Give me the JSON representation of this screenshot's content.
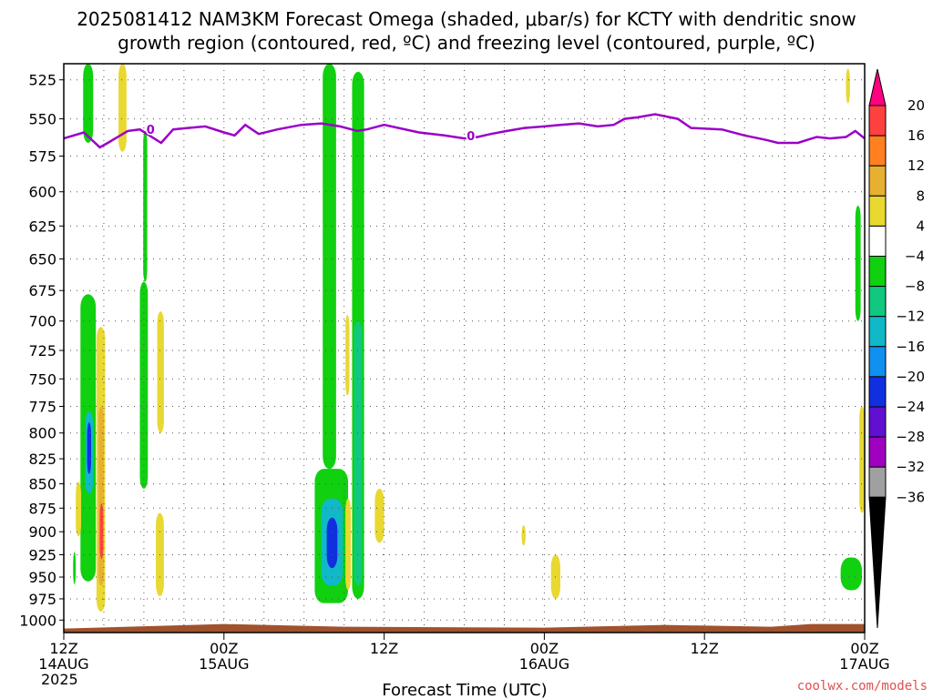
{
  "title_line1": "2025081412 NAM3KM Forecast Omega (shaded, μbar/s) for KCTY with dendritic snow",
  "title_line2": "growth region (contoured, red, ºC) and freezing level (contoured, purple, ºC)",
  "xlabel": "Forecast Time (UTC)",
  "credit": "coolwx.com/models",
  "freezing_label": "0",
  "colors": {
    "freezing_line": "#9b00c8",
    "terrain": "#a0522d",
    "grid": "#555555"
  },
  "chart_data": {
    "type": "heatmap",
    "x_ticks": [
      {
        "hour": 0,
        "l1": "12Z",
        "l2": "14AUG",
        "l3": "2025"
      },
      {
        "hour": 12,
        "l1": "00Z",
        "l2": "15AUG",
        "l3": ""
      },
      {
        "hour": 24,
        "l1": "12Z",
        "l2": "",
        "l3": ""
      },
      {
        "hour": 36,
        "l1": "00Z",
        "l2": "16AUG",
        "l3": ""
      },
      {
        "hour": 48,
        "l1": "12Z",
        "l2": "",
        "l3": ""
      },
      {
        "hour": 60,
        "l1": "00Z",
        "l2": "17AUG",
        "l3": ""
      }
    ],
    "x_range_hours": [
      0,
      60
    ],
    "y_ticks": [
      525,
      550,
      575,
      600,
      625,
      650,
      675,
      700,
      725,
      750,
      775,
      800,
      825,
      850,
      875,
      900,
      925,
      950,
      975,
      1000
    ],
    "y_range_hpa": [
      515,
      1015
    ],
    "y_scale": "log-pressure",
    "grid": "dotted",
    "colorbar": {
      "labels": [
        "20",
        "16",
        "12",
        "8",
        "4",
        "−4",
        "−8",
        "−12",
        "−16",
        "−20",
        "−24",
        "−28",
        "−32",
        "−36"
      ],
      "colors": [
        "#ff0080",
        "#ff4040",
        "#ff8020",
        "#e8b030",
        "#e8d830",
        "#ffffff",
        "#10d010",
        "#10c880",
        "#10b8c8",
        "#1090f0",
        "#1030e0",
        "#6010d0",
        "#a000c0",
        "#a0a0a0",
        "#000000"
      ]
    },
    "freezing_level": {
      "hours": [
        0,
        1.5,
        2.7,
        3.3,
        4.8,
        5.7,
        7.3,
        8.2,
        9.3,
        10.6,
        12,
        12.8,
        13.6,
        14.6,
        16,
        17.8,
        19.3,
        20.7,
        22,
        22.7,
        24,
        26.6,
        28.5,
        30,
        31,
        32,
        33.2,
        34.5,
        36,
        37.2,
        38.6,
        40,
        41.2,
        42,
        43,
        44.3,
        46,
        47,
        49.3,
        51,
        52.6,
        53.5,
        55,
        56.4,
        57.4,
        58.6,
        59.3,
        60
      ],
      "hpa": [
        563,
        559,
        569,
        566,
        558,
        557,
        566,
        557,
        556,
        555,
        559,
        561,
        554,
        560,
        557,
        554,
        553,
        555,
        558,
        557,
        554,
        559,
        561,
        563,
        562,
        560,
        558,
        556,
        555,
        554,
        553,
        555,
        554,
        550,
        549,
        547,
        550,
        556,
        557,
        561,
        564,
        566,
        566,
        562,
        563,
        562,
        558,
        563
      ]
    },
    "terrain_hpa": 1008,
    "omega_cells": [
      {
        "h0": 1.45,
        "h1": 2.2,
        "p0": 515,
        "p1": 566,
        "v": -6
      },
      {
        "h0": 4.1,
        "h1": 4.7,
        "p0": 515,
        "p1": 572,
        "v": 6
      },
      {
        "h0": 5.95,
        "h1": 6.25,
        "p0": 558,
        "p1": 668,
        "v": -6
      },
      {
        "h0": 5.7,
        "h1": 6.3,
        "p0": 668,
        "p1": 855,
        "v": -6
      },
      {
        "h0": 1.25,
        "h1": 2.4,
        "p0": 678,
        "p1": 955,
        "v": -6
      },
      {
        "h0": 1.6,
        "h1": 2.2,
        "p0": 780,
        "p1": 860,
        "v": -14
      },
      {
        "h0": 1.75,
        "h1": 2.05,
        "p0": 790,
        "p1": 840,
        "v": -20
      },
      {
        "h0": 2.45,
        "h1": 3.1,
        "p0": 705,
        "p1": 990,
        "v": 6
      },
      {
        "h0": 2.6,
        "h1": 3.0,
        "p0": 775,
        "p1": 960,
        "v": 10
      },
      {
        "h0": 2.7,
        "h1": 2.95,
        "p0": 870,
        "p1": 930,
        "v": 18
      },
      {
        "h0": 0.9,
        "h1": 1.3,
        "p0": 848,
        "p1": 905,
        "v": 6
      },
      {
        "h0": 0.7,
        "h1": 0.9,
        "p0": 922,
        "p1": 958,
        "v": -6
      },
      {
        "h0": 7.0,
        "h1": 7.5,
        "p0": 692,
        "p1": 800,
        "v": 6
      },
      {
        "h0": 6.9,
        "h1": 7.5,
        "p0": 880,
        "p1": 972,
        "v": 6
      },
      {
        "h0": 19.4,
        "h1": 20.4,
        "p0": 515,
        "p1": 835,
        "v": -6
      },
      {
        "h0": 18.8,
        "h1": 21.3,
        "p0": 835,
        "p1": 980,
        "v": -6
      },
      {
        "h0": 19.3,
        "h1": 20.9,
        "p0": 865,
        "p1": 960,
        "v": -12
      },
      {
        "h0": 19.7,
        "h1": 20.5,
        "p0": 885,
        "p1": 940,
        "v": -20
      },
      {
        "h0": 21.6,
        "h1": 22.5,
        "p0": 520,
        "p1": 975,
        "v": -6
      },
      {
        "h0": 21.75,
        "h1": 22.35,
        "p0": 700,
        "p1": 960,
        "v": -10
      },
      {
        "h0": 21.1,
        "h1": 21.4,
        "p0": 695,
        "p1": 765,
        "v": 6
      },
      {
        "h0": 21.1,
        "h1": 21.5,
        "p0": 865,
        "p1": 965,
        "v": 6
      },
      {
        "h0": 23.3,
        "h1": 24.0,
        "p0": 855,
        "p1": 912,
        "v": 6
      },
      {
        "h0": 34.3,
        "h1": 34.6,
        "p0": 893,
        "p1": 915,
        "v": 6
      },
      {
        "h0": 36.5,
        "h1": 37.2,
        "p0": 925,
        "p1": 975,
        "v": 6
      },
      {
        "h0": 58.6,
        "h1": 58.9,
        "p0": 518,
        "p1": 540,
        "v": 6
      },
      {
        "h0": 59.3,
        "h1": 59.7,
        "p0": 610,
        "p1": 700,
        "v": -6
      },
      {
        "h0": 58.2,
        "h1": 59.8,
        "p0": 928,
        "p1": 965,
        "v": -6
      },
      {
        "h0": 59.6,
        "h1": 60.0,
        "p0": 775,
        "p1": 880,
        "v": 6
      }
    ]
  }
}
